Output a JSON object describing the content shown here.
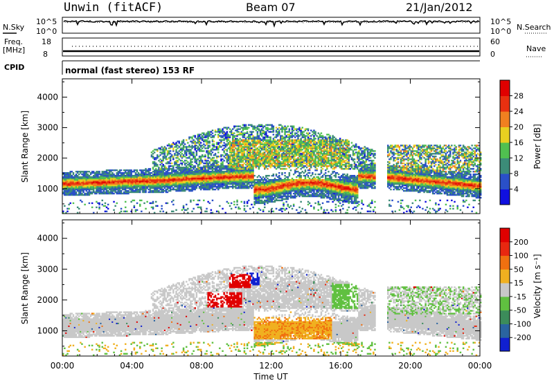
{
  "header": {
    "site": "Unwin (fitACF)",
    "beam": "Beam 07",
    "date": "21/Jan/2012"
  },
  "status_panel": {
    "nsky_label": "N.Sky",
    "nsky_top": "10^5",
    "nsky_bottom": "10^0",
    "nsearch_label": "N.Search",
    "nsearch_top": "10^5",
    "nsearch_bottom": "10^0",
    "freq_label_1": "Freq.",
    "freq_label_2": "[MHz]",
    "freq_top": "18",
    "freq_bottom": "8",
    "nave_label": "Nave",
    "nave_top": "60",
    "nave_bottom": "0",
    "cpid_label": "CPID",
    "cpid_text": "normal (fast stereo) 153 RF"
  },
  "chart_data": [
    {
      "type": "heatmap",
      "name": "power",
      "ylabel": "Slant Range [km]",
      "yticks": [
        "1000",
        "2000",
        "3000",
        "4000"
      ],
      "ylim": [
        180,
        4600
      ],
      "colorbar_label": "Power [dB]",
      "colorbar_ticks": [
        "4",
        "8",
        "12",
        "16",
        "20",
        "24",
        "28"
      ],
      "colorbar_colors": [
        "#1010e0",
        "#2a50c8",
        "#3c8c78",
        "#50c050",
        "#e8d020",
        "#f08020",
        "#e83010",
        "#e00000"
      ]
    },
    {
      "type": "heatmap",
      "name": "velocity",
      "ylabel": "Slant Range [km]",
      "yticks": [
        "1000",
        "2000",
        "3000",
        "4000"
      ],
      "ylim": [
        180,
        4600
      ],
      "colorbar_label": "Velocity [m s⁻¹]",
      "colorbar_ticks": [
        "200",
        "100",
        "50",
        "15",
        "-15",
        "-50",
        "-100",
        "-200"
      ],
      "colorbar_colors": [
        "#1020d0",
        "#2a64a0",
        "#3c8c5a",
        "#60c040",
        "#c8c8c8",
        "#f0b020",
        "#f07010",
        "#e82810",
        "#e00000"
      ]
    }
  ],
  "xaxis": {
    "label": "Time UT",
    "ticks": [
      "00:00",
      "04:00",
      "08:00",
      "12:00",
      "16:00",
      "20:00",
      "00:00"
    ]
  }
}
